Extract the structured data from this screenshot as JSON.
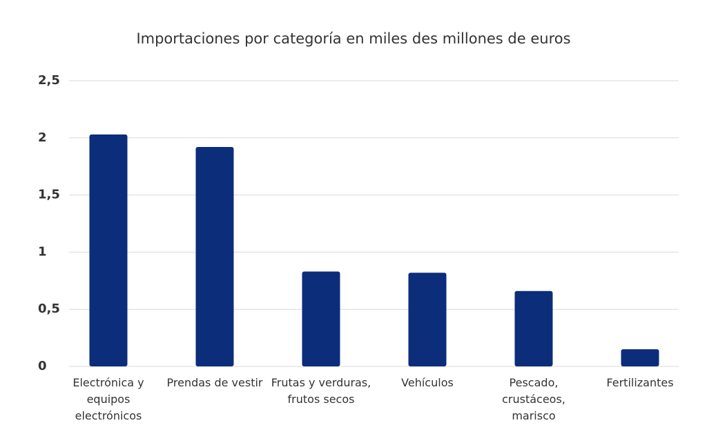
{
  "chart_data": {
    "type": "bar",
    "title": "Importaciones por categoría en miles des millones de euros",
    "categories": [
      "Electrónica y equipos electrónicos",
      "Prendas de vestir",
      "Frutas y verduras, frutos secos",
      "Vehículos",
      "Pescado, crustáceos, marisco",
      "Fertilizantes"
    ],
    "values": [
      2.03,
      1.92,
      0.83,
      0.82,
      0.66,
      0.15
    ],
    "color": "#0b2d7a",
    "ylim": [
      0,
      2.5
    ],
    "yticks": [
      0,
      {
        "value": 0.5,
        "label": "0,5"
      },
      1,
      {
        "value": 1.5,
        "label": "1,5"
      },
      2,
      {
        "value": 2.5,
        "label": "2,5"
      }
    ],
    "grid": true
  }
}
